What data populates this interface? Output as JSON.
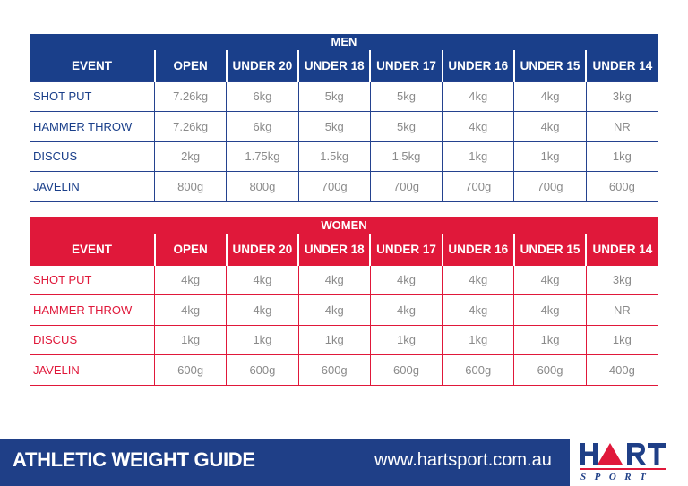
{
  "columns": [
    "EVENT",
    "OPEN",
    "UNDER 20",
    "UNDER 18",
    "UNDER 17",
    "UNDER 16",
    "UNDER 15",
    "UNDER 14"
  ],
  "men": {
    "title": "MEN",
    "rows": [
      {
        "event": "SHOT PUT",
        "values": [
          "7.26kg",
          "6kg",
          "5kg",
          "5kg",
          "4kg",
          "4kg",
          "3kg"
        ]
      },
      {
        "event": "HAMMER THROW",
        "values": [
          "7.26kg",
          "6kg",
          "5kg",
          "5kg",
          "4kg",
          "4kg",
          "NR"
        ]
      },
      {
        "event": "DISCUS",
        "values": [
          "2kg",
          "1.75kg",
          "1.5kg",
          "1.5kg",
          "1kg",
          "1kg",
          "1kg"
        ]
      },
      {
        "event": "JAVELIN",
        "values": [
          "800g",
          "800g",
          "700g",
          "700g",
          "700g",
          "700g",
          "600g"
        ]
      }
    ]
  },
  "women": {
    "title": "WOMEN",
    "rows": [
      {
        "event": "SHOT PUT",
        "values": [
          "4kg",
          "4kg",
          "4kg",
          "4kg",
          "4kg",
          "4kg",
          "3kg"
        ]
      },
      {
        "event": "HAMMER THROW",
        "values": [
          "4kg",
          "4kg",
          "4kg",
          "4kg",
          "4kg",
          "4kg",
          "NR"
        ]
      },
      {
        "event": "DISCUS",
        "values": [
          "1kg",
          "1kg",
          "1kg",
          "1kg",
          "1kg",
          "1kg",
          "1kg"
        ]
      },
      {
        "event": "JAVELIN",
        "values": [
          "600g",
          "600g",
          "600g",
          "600g",
          "600g",
          "600g",
          "400g"
        ]
      }
    ]
  },
  "footer": {
    "title": "ATHLETIC WEIGHT GUIDE",
    "url": "www.hartsport.com.au"
  },
  "logo": {
    "text": "HART",
    "subtext": "SPORT",
    "icon": "triangle-a-icon"
  },
  "colors": {
    "men": "#1a3f8a",
    "women": "#e0183a",
    "footer": "#1f3f87"
  }
}
